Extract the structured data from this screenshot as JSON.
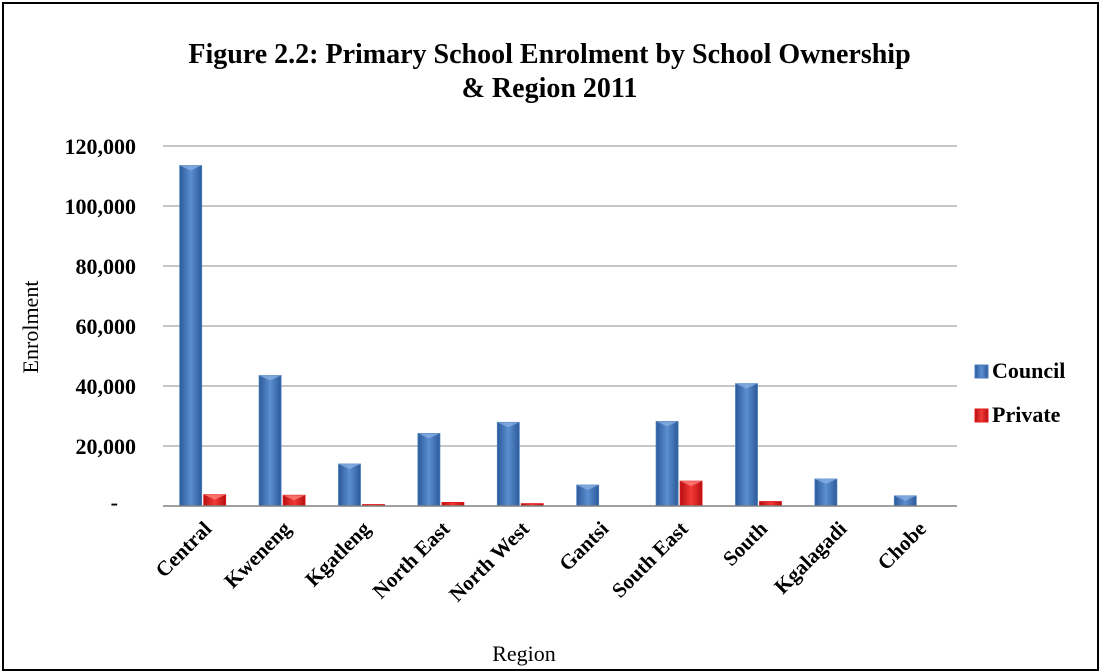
{
  "chart_data": {
    "type": "bar",
    "title_line1": "Figure 2.2: Primary School  Enrolment by School Ownership",
    "title_line2": "& Region 2011",
    "xlabel": "Region",
    "ylabel": "Enrolment",
    "categories": [
      "Central",
      "Kweneng",
      "Kgatleng",
      "North East",
      "North West",
      "Gantsi",
      "South East",
      "South",
      "Kgalagadi",
      "Chobe"
    ],
    "series": [
      {
        "name": "Council",
        "color": "#4a7ebb",
        "values": [
          113500,
          43500,
          14000,
          24200,
          27900,
          7000,
          28200,
          40800,
          9000,
          3400
        ]
      },
      {
        "name": "Private",
        "color": "#e0191b",
        "values": [
          3800,
          3600,
          500,
          1200,
          800,
          0,
          8300,
          1500,
          0,
          0
        ]
      }
    ],
    "ylim": [
      0,
      120000
    ],
    "yticks": [
      0,
      20000,
      40000,
      60000,
      80000,
      100000,
      120000
    ],
    "ytick_labels": [
      "-",
      "20,000",
      "40,000",
      "60,000",
      "80,000",
      "100,000",
      "120,000"
    ],
    "grid": true,
    "legend_position": "right"
  }
}
